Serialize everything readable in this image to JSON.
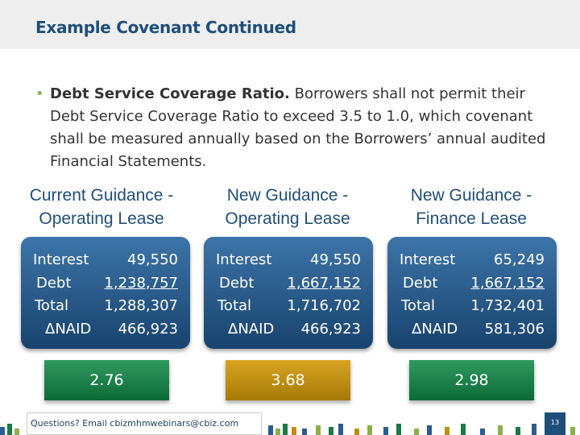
{
  "slide": {
    "title": "Example Covenant Continued",
    "bullet_lead": "Debt Service Coverage Ratio.",
    "bullet_body": " Borrowers shall not permit their Debt Service Coverage Ratio to exceed 3.5 to 1.0, which covenant shall be measured annually based on the Borrowers’ annual audited Financial Statements."
  },
  "columns": [
    {
      "heading_line1": "Current Guidance -",
      "heading_line2": "Operating Lease",
      "rows": [
        {
          "label": "Interest",
          "value": "49,550"
        },
        {
          "label": "Debt",
          "value": "1,238,757",
          "underline": true
        },
        {
          "label": "Total",
          "value": "1,288,307"
        },
        {
          "label": "ΔNAID",
          "value": "466,923"
        }
      ],
      "ratio": "2.76",
      "ratio_color": "#1a7a45"
    },
    {
      "heading_line1": "New Guidance -",
      "heading_line2": "Operating Lease",
      "rows": [
        {
          "label": "Interest",
          "value": "49,550"
        },
        {
          "label": "Debt",
          "value": "1,667,152",
          "underline": true
        },
        {
          "label": "Total",
          "value": "1,716,702"
        },
        {
          "label": "ΔNAID",
          "value": "466,923"
        }
      ],
      "ratio": "3.68",
      "ratio_color": "#c08f0f"
    },
    {
      "heading_line1": "New Guidance -",
      "heading_line2": "Finance Lease",
      "rows": [
        {
          "label": "Interest",
          "value": "65,249"
        },
        {
          "label": "Debt",
          "value": "1,667,152",
          "underline": true
        },
        {
          "label": "Total",
          "value": "1,732,401"
        },
        {
          "label": "ΔNAID",
          "value": "581,306"
        }
      ],
      "ratio": "2.98",
      "ratio_color": "#1a7a45"
    }
  ],
  "footer": {
    "questions_text": "Questions? Email cbizmhmwebinars@cbiz.com",
    "page_number": "13"
  },
  "colors": {
    "title": "#1f4e79",
    "bullet": "#8ab04a",
    "box_blue": "#2a5d8f",
    "green": "#1a7a45",
    "gold": "#c08f0f"
  }
}
